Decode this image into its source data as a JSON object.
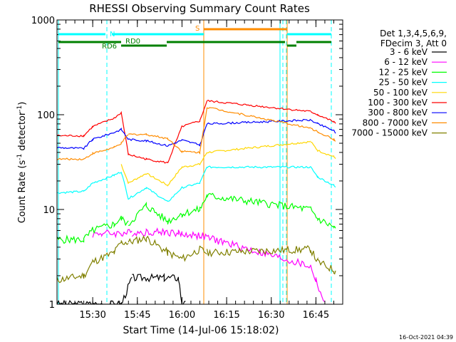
{
  "chart_data": {
    "type": "line",
    "title": "RHESSI Observing Summary Count Rates",
    "xlabel": "Start Time (14-Jul-06 15:18:02)",
    "ylabel_main": "Count Rate (s",
    "ylabel_sup1": "-1",
    "ylabel_mid": " detector",
    "ylabel_sup2": "-1",
    "ylabel_end": ")",
    "yscale": "log",
    "ylim": [
      1,
      1000
    ],
    "xlim_minutes": [
      15.3,
      16.9
    ],
    "y_ticks": [
      {
        "v": 1,
        "label": "1"
      },
      {
        "v": 10,
        "label": "10"
      },
      {
        "v": 100,
        "label": "100"
      },
      {
        "v": 1000,
        "label": "1000"
      }
    ],
    "x_ticks": [
      {
        "v": 15.5,
        "label": "15:30"
      },
      {
        "v": 15.75,
        "label": "15:45"
      },
      {
        "v": 16.0,
        "label": "16:00"
      },
      {
        "v": 16.25,
        "label": "16:15"
      },
      {
        "v": 16.5,
        "label": "16:30"
      },
      {
        "v": 16.75,
        "label": "16:45"
      }
    ],
    "legend_header": [
      "Det 1,3,4,5,6,9,",
      "FDecim 3, Att 0"
    ],
    "legend_placement": "right",
    "timestamp": "16-Oct-2021 04:39",
    "flags": [
      {
        "label": "N",
        "color": "#00ffff"
      },
      {
        "label": "RD0",
        "color": "#008000"
      },
      {
        "label": "RD6",
        "color": "#008000"
      },
      {
        "label": "S",
        "color": "#ff8c00"
      }
    ],
    "series": [
      {
        "name": "3 - 6 keV",
        "color": "#000000",
        "x": [
          15.3,
          15.5,
          15.66,
          15.72,
          15.8,
          15.9,
          15.98,
          16.0,
          16.02
        ],
        "y": [
          1,
          1,
          1,
          1.9,
          1.9,
          1.9,
          1.9,
          1,
          1
        ]
      },
      {
        "name": "6 - 12 keV",
        "color": "#ff00ff",
        "x": [
          15.5,
          15.55,
          15.66,
          15.72,
          15.8,
          15.9,
          15.98,
          16.0,
          16.1,
          16.72,
          16.75,
          16.8
        ],
        "y": [
          5.5,
          5.6,
          5.6,
          5.7,
          5.8,
          5.8,
          5.6,
          5.5,
          5.3,
          2.5,
          1.8,
          1
        ]
      },
      {
        "name": "12 - 25 keV",
        "color": "#00ff00",
        "x": [
          15.3,
          15.45,
          15.5,
          15.62,
          15.66,
          15.7,
          15.8,
          15.92,
          16.0,
          16.1,
          16.14,
          16.72,
          16.76,
          16.85,
          16.86
        ],
        "y": [
          4.8,
          4.8,
          6,
          7,
          8,
          7,
          11,
          7.5,
          9,
          10,
          14,
          10,
          8,
          6.5,
          6
        ]
      },
      {
        "name": "25 - 50 keV",
        "color": "#00ffff",
        "x": [
          15.3,
          15.45,
          15.5,
          15.62,
          15.66,
          15.7,
          15.8,
          15.92,
          16.0,
          16.1,
          16.14,
          16.72,
          16.76,
          16.85,
          16.86
        ],
        "y": [
          15,
          15.5,
          19,
          23,
          25,
          13,
          17,
          12,
          17,
          19,
          28,
          28,
          22,
          18,
          17
        ]
      },
      {
        "name": "50 - 100 keV",
        "color": "#ffd700",
        "x": [
          15.66,
          15.7,
          15.8,
          15.92,
          16.0,
          16.1,
          16.14,
          16.72,
          16.76,
          16.85,
          16.86
        ],
        "y": [
          30,
          19,
          24,
          18,
          28,
          30,
          40,
          52,
          42,
          36,
          35
        ]
      },
      {
        "name": "100 - 300 keV",
        "color": "#ff0000",
        "x": [
          15.3,
          15.45,
          15.5,
          15.62,
          15.66,
          15.7,
          15.8,
          15.92,
          16.0,
          16.1,
          16.14,
          16.72,
          16.76,
          16.85,
          16.86
        ],
        "y": [
          60,
          60,
          75,
          92,
          105,
          38,
          34,
          31,
          75,
          86,
          140,
          108,
          100,
          84,
          80
        ]
      },
      {
        "name": "300 - 800 keV",
        "color": "#0000ff",
        "x": [
          15.3,
          15.45,
          15.5,
          15.62,
          15.66,
          15.7,
          15.8,
          15.92,
          16.0,
          16.1,
          16.14,
          16.72,
          16.76,
          16.85,
          16.86
        ],
        "y": [
          45,
          44,
          55,
          65,
          70,
          55,
          53,
          47,
          54,
          48,
          80,
          88,
          80,
          68,
          63
        ]
      },
      {
        "name": "800 - 7000 keV",
        "color": "#ff8c00",
        "x": [
          15.3,
          15.45,
          15.5,
          15.62,
          15.66,
          15.7,
          15.8,
          15.92,
          16.0,
          16.1,
          16.14,
          16.72,
          16.76,
          16.85,
          16.86
        ],
        "y": [
          34,
          34,
          39,
          45,
          50,
          62,
          62,
          56,
          41,
          40,
          120,
          72,
          66,
          55,
          52
        ]
      },
      {
        "name": "7000 - 15000 keV",
        "color": "#808000",
        "x": [
          15.3,
          15.45,
          15.5,
          15.62,
          15.66,
          15.7,
          15.8,
          15.92,
          16.0,
          16.1,
          16.14,
          16.72,
          16.76,
          16.85,
          16.86
        ],
        "y": [
          1.8,
          2.0,
          2.8,
          3.5,
          4.5,
          4.5,
          5.0,
          3.5,
          3.0,
          3.8,
          3.5,
          3.8,
          2.8,
          2.3,
          2.2
        ]
      }
    ]
  }
}
